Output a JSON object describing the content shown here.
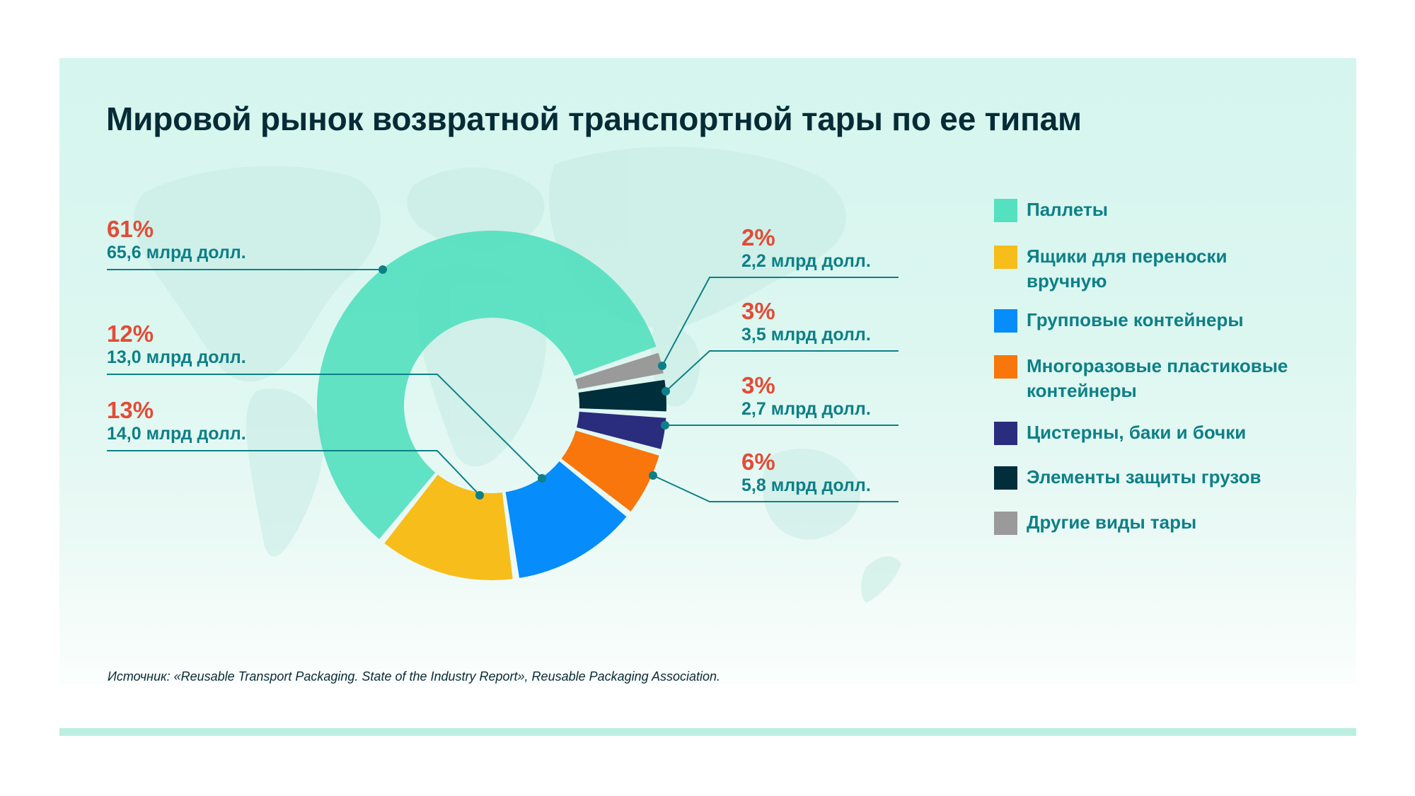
{
  "title": "Мировой рынок возвратной транспортной тары по ее типам",
  "source": "Источник: «Reusable Transport Packaging. State of the Industry Report», Reusable Packaging Association.",
  "colors": {
    "background_top": "#d5f5ee",
    "accent_bar": "#bcefe0",
    "title": "#062b36",
    "percent": "#e34b36",
    "value": "#0d8087",
    "connector": "#0d8087"
  },
  "chart_data": {
    "type": "pie",
    "variant": "donut",
    "title": "Мировой рынок возвратной транспортной тары по ее типам",
    "unit": "млрд долл.",
    "legend_position": "right",
    "slices": [
      {
        "name": "Паллеты",
        "percent": 61,
        "value": 65.6,
        "value_label": "65,6 млрд долл.",
        "percent_label": "61%",
        "color": "#55e0bf"
      },
      {
        "name": "Ящики для переноски вручную",
        "percent": 13,
        "value": 14.0,
        "value_label": "14,0 млрд долл.",
        "percent_label": "13%",
        "color": "#f7bd1a"
      },
      {
        "name": "Групповые контейнеры",
        "percent": 12,
        "value": 13.0,
        "value_label": "13,0 млрд долл.",
        "percent_label": "12%",
        "color": "#068cfb"
      },
      {
        "name": "Многоразовые пластиковые контейнеры",
        "percent": 6,
        "value": 5.8,
        "value_label": "5,8 млрд долл.",
        "percent_label": "6%",
        "color": "#f8760b"
      },
      {
        "name": "Цистерны, баки и бочки",
        "percent": 3,
        "value": 2.7,
        "value_label": "2,7 млрд долл.",
        "percent_label": "3%",
        "color": "#2a2c7e"
      },
      {
        "name": "Элементы защиты грузов",
        "percent": 3,
        "value": 3.5,
        "value_label": "3,5 млрд долл.",
        "percent_label": "3%",
        "color": "#012e3b"
      },
      {
        "name": "Другие виды тары",
        "percent": 2,
        "value": 2.2,
        "value_label": "2,2 млрд долл.",
        "percent_label": "2%",
        "color": "#9a9a9a"
      }
    ]
  },
  "labels_left": [
    {
      "percent": "61%",
      "value": "65,6 млрд долл."
    },
    {
      "percent": "12%",
      "value": "13,0 млрд долл."
    },
    {
      "percent": "13%",
      "value": "14,0 млрд долл."
    }
  ],
  "labels_right": [
    {
      "percent": "2%",
      "value": "2,2 млрд долл."
    },
    {
      "percent": "3%",
      "value": "3,5 млрд долл."
    },
    {
      "percent": "3%",
      "value": "2,7 млрд долл."
    },
    {
      "percent": "6%",
      "value": "5,8 млрд долл."
    }
  ],
  "legend": [
    {
      "label": "Паллеты",
      "color": "#55e0bf"
    },
    {
      "label": "Ящики для переноски вручную",
      "color": "#f7bd1a"
    },
    {
      "label": "Групповые контейнеры",
      "color": "#068cfb"
    },
    {
      "label": "Многоразовые пластиковые контейнеры",
      "color": "#f8760b"
    },
    {
      "label": "Цистерны, баки и бочки",
      "color": "#2a2c7e"
    },
    {
      "label": "Элементы защиты грузов",
      "color": "#012e3b"
    },
    {
      "label": "Другие виды тары",
      "color": "#9a9a9a"
    }
  ]
}
